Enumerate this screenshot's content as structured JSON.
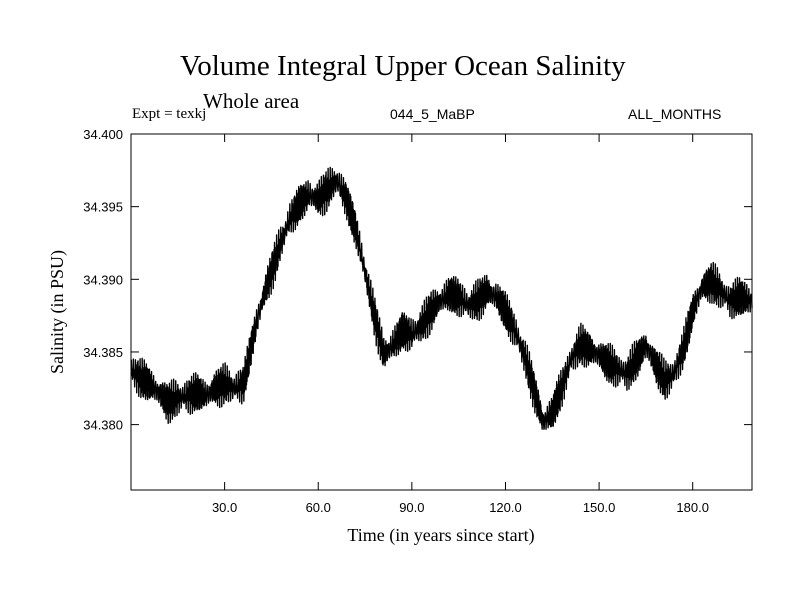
{
  "chart_data": {
    "type": "line",
    "title": "Volume Integral Upper Ocean Salinity",
    "subtitle": "Whole area",
    "experiment": "Expt = texkj",
    "run": "044_5_MaBP",
    "months": "ALL_MONTHS",
    "xlabel": "Time (in years since start)",
    "ylabel": "Salinity (in PSU)",
    "xlim": [
      0,
      199
    ],
    "ylim": [
      34.3755,
      34.4
    ],
    "x_ticks": [
      30,
      60,
      90,
      120,
      150,
      180
    ],
    "x_tick_labels": [
      "30.0",
      "60.0",
      "90.0",
      "120.0",
      "150.0",
      "180.0"
    ],
    "y_ticks": [
      34.38,
      34.385,
      34.39,
      34.395,
      34.4
    ],
    "y_tick_labels": [
      "34.380",
      "34.385",
      "34.390",
      "34.395",
      "34.400"
    ],
    "series": [
      {
        "name": "Salinity",
        "color": "#000000",
        "x": [
          0,
          3,
          6,
          9,
          12,
          15,
          18,
          21,
          24,
          27,
          30,
          33,
          36,
          39,
          42,
          45,
          48,
          51,
          54,
          57,
          60,
          63,
          66,
          69,
          72,
          75,
          78,
          81,
          84,
          87,
          90,
          93,
          96,
          99,
          102,
          105,
          108,
          111,
          114,
          117,
          120,
          123,
          126,
          129,
          132,
          135,
          138,
          141,
          144,
          147,
          150,
          153,
          156,
          159,
          162,
          165,
          168,
          171,
          174,
          177,
          180,
          183,
          186,
          189,
          192,
          195,
          199
        ],
        "values": [
          34.3838,
          34.3832,
          34.3828,
          34.3822,
          34.3815,
          34.3818,
          34.382,
          34.3822,
          34.382,
          34.3825,
          34.3828,
          34.3825,
          34.3828,
          34.3858,
          34.3885,
          34.3905,
          34.3925,
          34.3942,
          34.3952,
          34.3958,
          34.3955,
          34.3962,
          34.3968,
          34.3955,
          34.3935,
          34.3905,
          34.3875,
          34.3848,
          34.3855,
          34.3865,
          34.3862,
          34.3868,
          34.3878,
          34.3885,
          34.389,
          34.3888,
          34.3882,
          34.3885,
          34.3892,
          34.3888,
          34.3878,
          34.3865,
          34.3848,
          34.3825,
          34.3802,
          34.3808,
          34.3825,
          34.3845,
          34.3855,
          34.3852,
          34.3848,
          34.3842,
          34.3838,
          34.3835,
          34.3845,
          34.3855,
          34.3842,
          34.383,
          34.3835,
          34.3852,
          34.3878,
          34.3895,
          34.3898,
          34.3892,
          34.3885,
          34.3888,
          34.3885
        ]
      }
    ]
  }
}
